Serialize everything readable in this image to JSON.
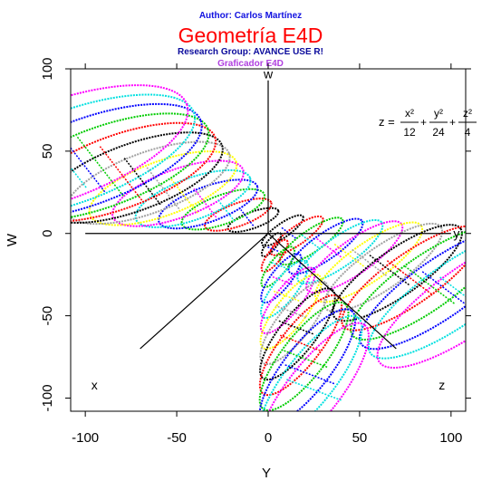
{
  "header": {
    "author": "Author: Carlos Martínez",
    "title": "Geometría E4D",
    "group": "Research Group: AVANCE USE R!",
    "subtitle": "Graficador E4D"
  },
  "colors": {
    "author": "#1010e0",
    "title": "#ff0000",
    "group": "#0a0a9c",
    "subtitle": "#b040e0",
    "palette": [
      "#000000",
      "#ff0000",
      "#00cc00",
      "#0000ff",
      "#00e0e0",
      "#ff00ff",
      "#ffff00",
      "#a0a0a0"
    ]
  },
  "chart_data": {
    "type": "line",
    "title": "",
    "xlabel": "Y",
    "ylabel": "W",
    "xlim": [
      -108,
      108
    ],
    "ylim": [
      -108,
      100
    ],
    "x_ticks": [
      -100,
      -50,
      0,
      50,
      100
    ],
    "y_ticks": [
      -100,
      -50,
      0,
      50,
      100
    ],
    "x_tick_labels": [
      "-100",
      "-50",
      "0",
      "50",
      "100"
    ],
    "y_tick_labels": [
      "-100",
      "-50",
      "0",
      "50",
      "100"
    ],
    "grid": false,
    "equation": {
      "lhs": "z =",
      "terms": [
        {
          "num": "x²",
          "den": "12"
        },
        {
          "num": "y²",
          "den": "24"
        },
        {
          "num": "z²",
          "den": "4"
        }
      ],
      "plus": "+"
    },
    "axis_labels": {
      "w": "w",
      "y": "y",
      "x": "x",
      "z": "z"
    },
    "axes3d": {
      "w": [
        [
          0,
          0
        ],
        [
          0,
          93
        ]
      ],
      "y": [
        [
          0,
          0
        ],
        [
          100,
          0
        ]
      ],
      "x": [
        [
          0,
          0
        ],
        [
          -70,
          -70
        ]
      ],
      "z": [
        [
          0,
          0
        ],
        [
          70,
          -70
        ]
      ],
      "y_neg": [
        [
          0,
          0
        ],
        [
          -100,
          0
        ]
      ]
    },
    "surface": {
      "description": "Families of colored ellipse contour slices",
      "lobes": [
        {
          "name": "upper-right",
          "centers": [
            [
              0,
              5
            ],
            [
              110,
              -40
            ]
          ],
          "a": [
            10,
            60
          ],
          "b": [
            3,
            20
          ],
          "angle_deg": -35
        },
        {
          "name": "left",
          "centers": [
            [
              0,
              5
            ],
            [
              -115,
              50
            ]
          ],
          "a": [
            10,
            75
          ],
          "b": [
            3,
            30
          ],
          "angle_deg": -20
        },
        {
          "name": "lower",
          "centers": [
            [
              0,
              0
            ],
            [
              25,
              -95
            ]
          ],
          "a": [
            5,
            45
          ],
          "b": [
            2,
            16
          ],
          "angle_deg": -52
        }
      ],
      "slices": 14
    }
  }
}
